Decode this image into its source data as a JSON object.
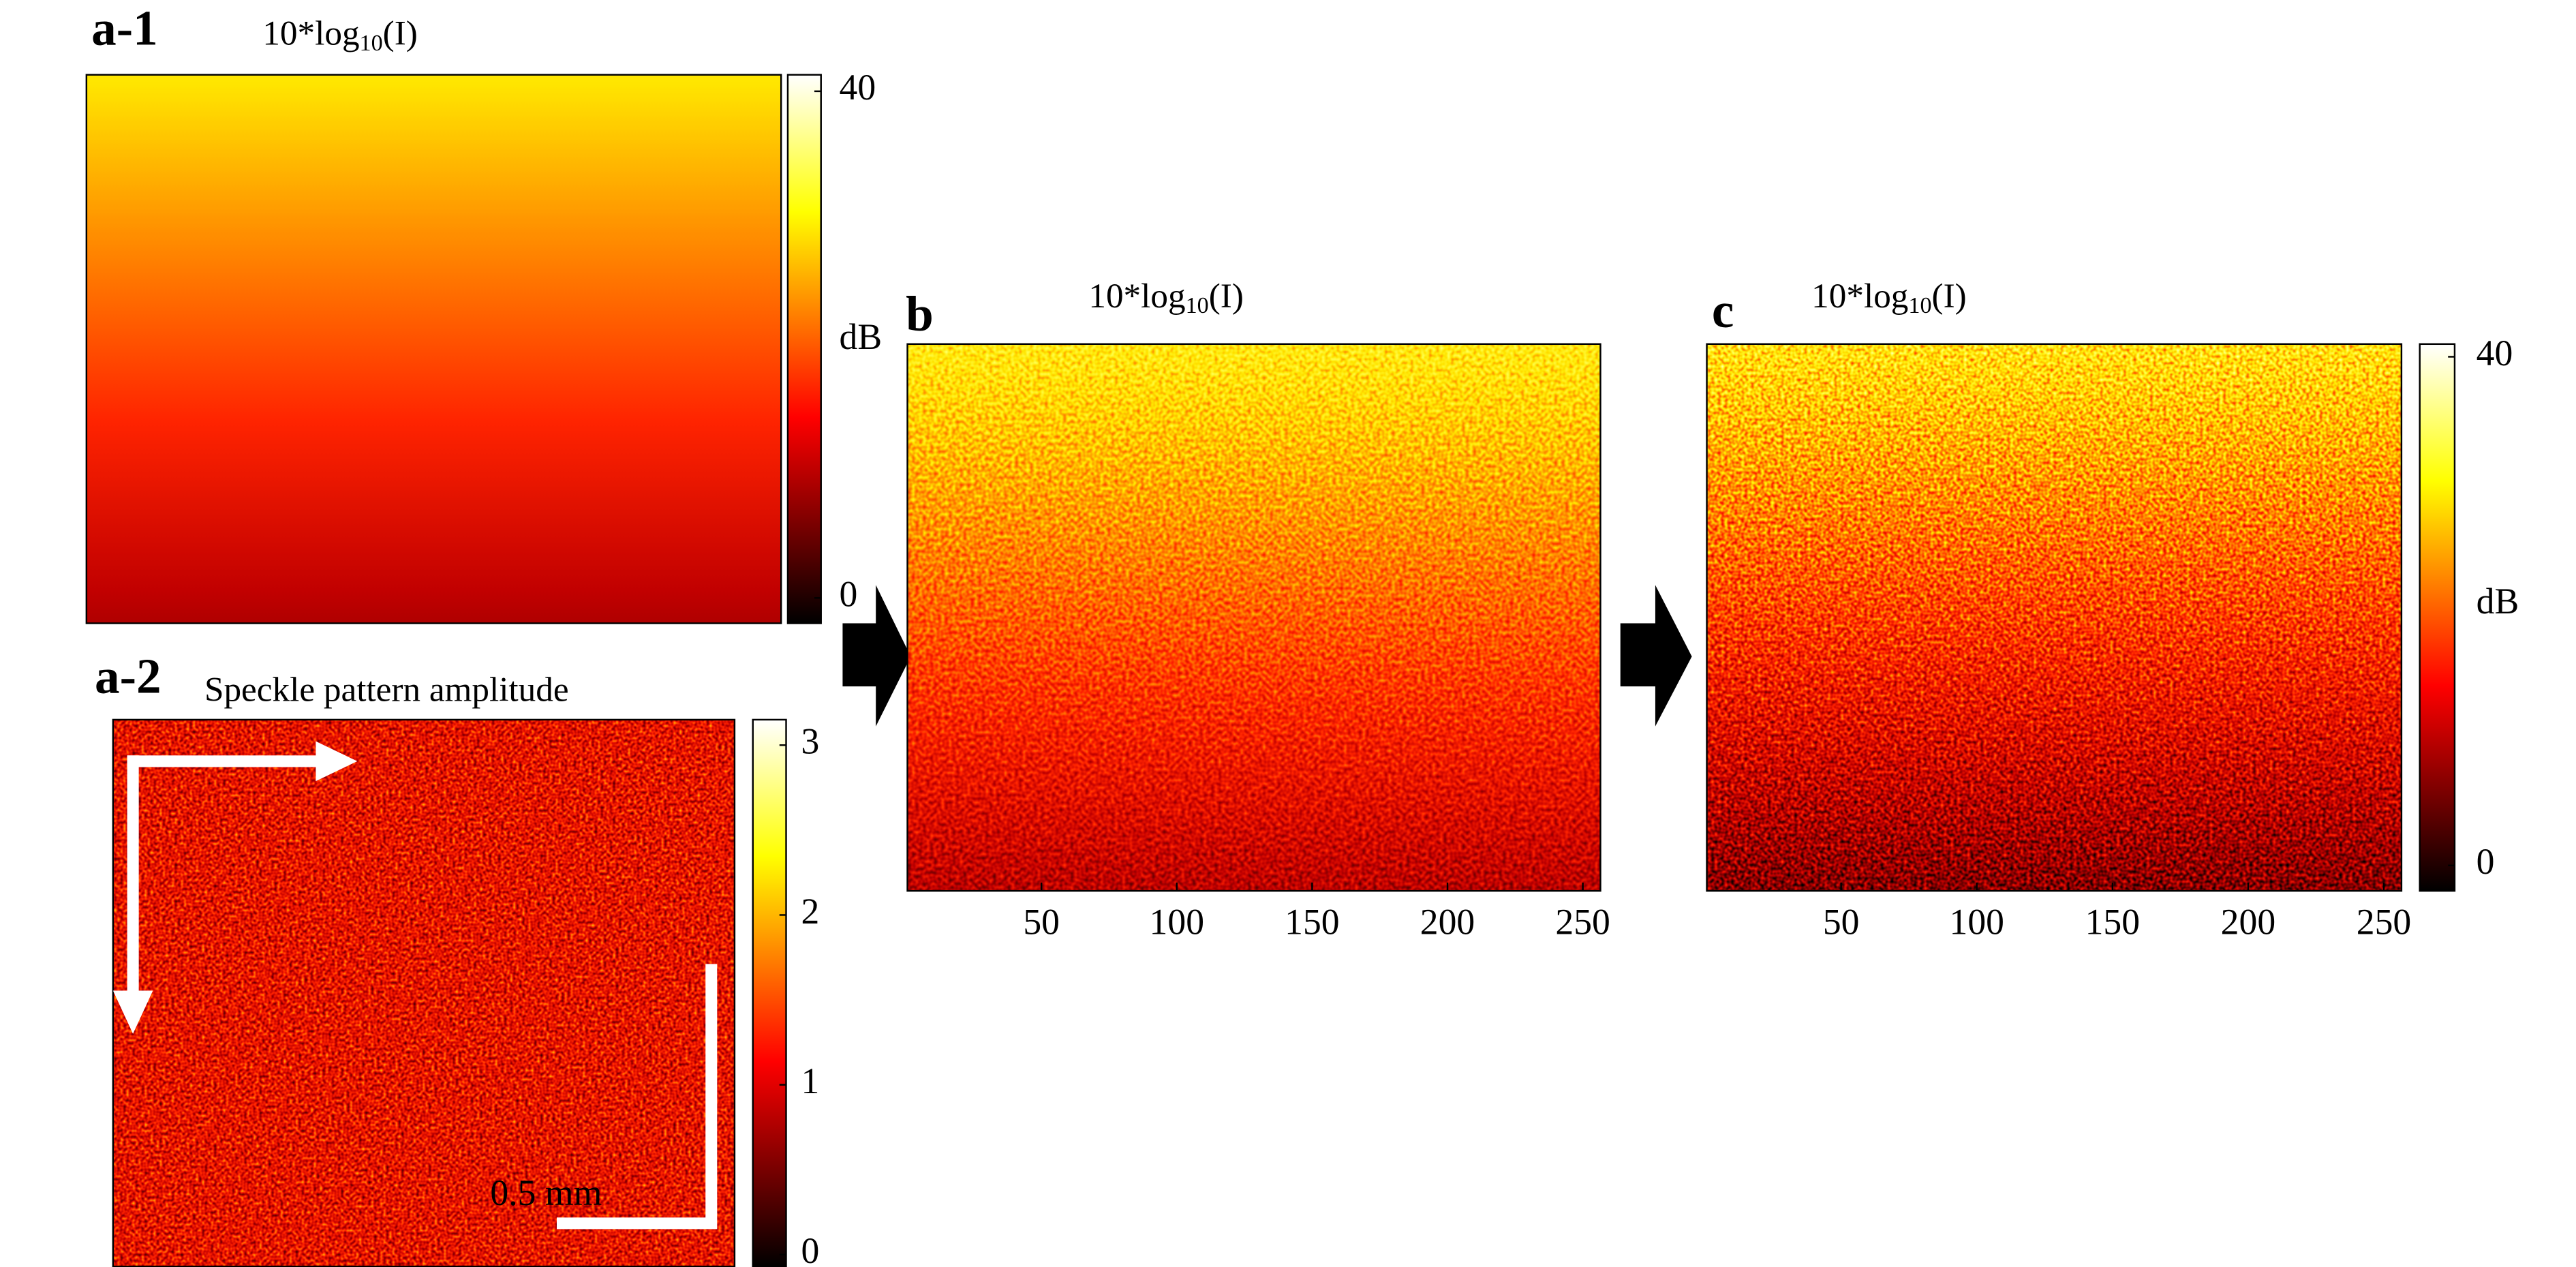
{
  "chart_data": [
    {
      "type": "heatmap",
      "label": "a-1",
      "title": [
        "10*log",
        "10",
        "(I)"
      ],
      "colorbar": {
        "label": "dB",
        "lim": [
          -2,
          41.3
        ],
        "ticks": [
          0,
          40
        ]
      }
    },
    {
      "type": "heatmap",
      "label": "a-2",
      "title": "Speckle pattern amplitude",
      "scale_bar": "0.5 mm",
      "colorbar": {
        "lim": [
          -0.07,
          3.15
        ],
        "ticks": [
          0,
          1,
          2,
          3
        ]
      }
    },
    {
      "type": "heatmap",
      "label": "b",
      "title": [
        "10*log",
        "10",
        "(I)"
      ],
      "xlim": [
        0.5,
        256.5
      ],
      "xticks": [
        50,
        100,
        150,
        200,
        250
      ]
    },
    {
      "type": "heatmap",
      "label": "c",
      "title": [
        "10*log",
        "10",
        "(I)"
      ],
      "xlim": [
        0.5,
        256.5
      ],
      "xticks": [
        50,
        100,
        150,
        200,
        250
      ],
      "colorbar": {
        "label": "dB",
        "lim": [
          -2,
          41
        ],
        "ticks": [
          0,
          40
        ]
      }
    }
  ]
}
